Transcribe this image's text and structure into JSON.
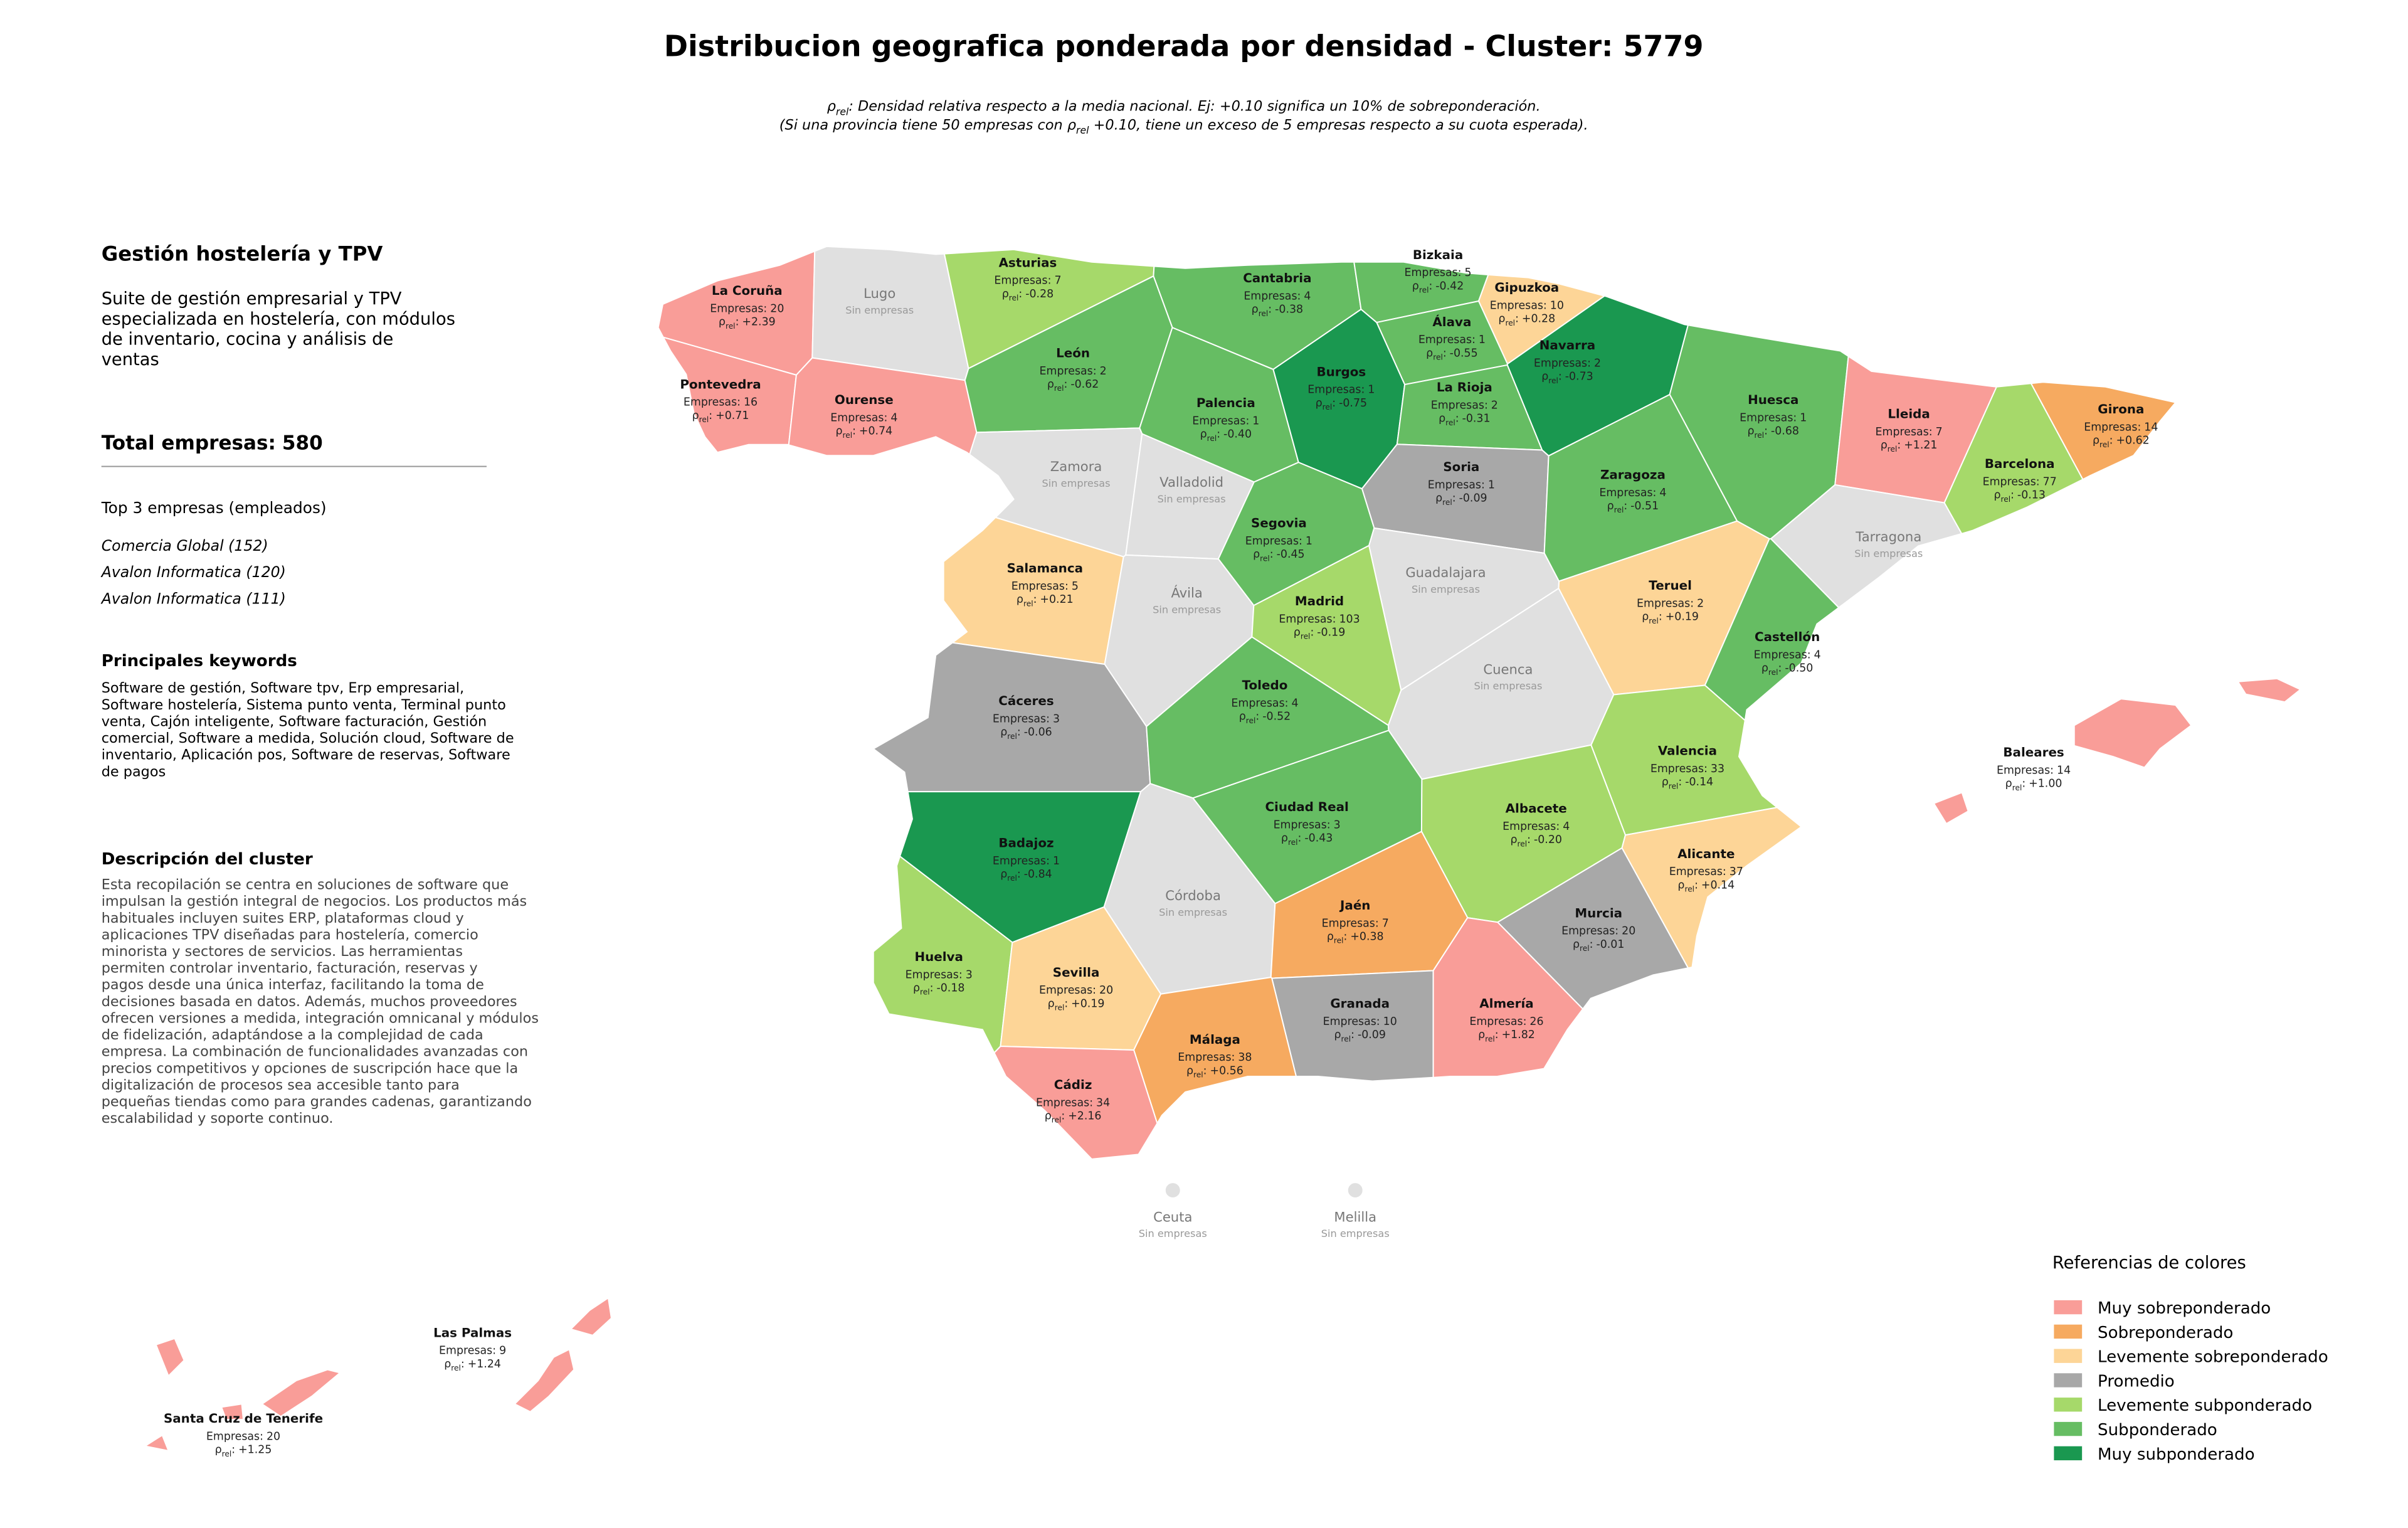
{
  "header": {
    "title": "Distribucion geografica ponderada por densidad - Cluster: 5779",
    "rho_symbol": "ρ",
    "rho_sub": "rel",
    "rho_suffix": ":",
    "subtitle_line1_rest": ": Densidad relativa respecto a la media nacional. Ej: +0.10 significa un 10% de sobreponderación.",
    "subtitle_line2_before": "(Si una provincia tiene 50 empresas con ",
    "subtitle_line2_after": " +0.10, tiene un exceso de 5 empresas respecto a su cuota esperada)."
  },
  "sidebar": {
    "cluster_name": "Gestión hostelería y TPV",
    "cluster_summary": [
      "Suite de gestión empresarial y TPV",
      "especializada en hostelería, con módulos",
      "de inventario, cocina y análisis de",
      "ventas"
    ],
    "total_label": "Total empresas:",
    "total": 580,
    "top_title": "Top 3 empresas (empleados)",
    "top_companies": [
      "Comercia Global (152)",
      "Avalon Informatica (120)",
      "Avalon Informatica (111)"
    ],
    "keywords_title": "Principales keywords",
    "keywords": [
      "Software de gestión, Software tpv, Erp empresarial,",
      "Software hostelería, Sistema punto venta, Terminal punto",
      "venta, Cajón inteligente, Software facturación, Gestión",
      "comercial, Software a medida, Solución cloud, Software de",
      "inventario, Aplicación pos, Software de reservas, Software",
      "de pagos"
    ],
    "description_title": "Descripción del cluster",
    "description": [
      "Esta recopilación se centra en soluciones de software que",
      "impulsan la gestión integral de negocios. Los productos más",
      "habituales incluyen suites ERP, plataformas cloud y",
      "aplicaciones TPV diseñadas para hostelería, comercio",
      "minorista y sectores de servicios. Las herramientas",
      "permiten controlar inventario, facturación, reservas y",
      "pagos desde una única interfaz, facilitando la toma de",
      "decisiones basada en datos. Además, muchos proveedores",
      "ofrecen versiones a medida, integración omnicanal y módulos",
      "de fidelización, adaptándose a la complejidad de cada",
      "empresa. La combinación de funcionalidades avanzadas con",
      "precios competitivos y opciones de suscripción hace que la",
      "digitalización de procesos sea accesible tanto para",
      "pequeñas tiendas como para grandes cadenas, garantizando",
      "escalabilidad y soporte continuo."
    ]
  },
  "map": {
    "empresas_label": "Empresas:",
    "no_data_label": "Sin empresas",
    "no_data_color": "#e0e0e0",
    "provinces": [
      {
        "name": "La Coruña",
        "empresas": 20,
        "rho": 2.39,
        "rho_label": "+2.39",
        "level": "Muy sobreponderado"
      },
      {
        "name": "Lugo"
      },
      {
        "name": "Asturias",
        "empresas": 7,
        "rho": -0.28,
        "level": "Levemente subponderado"
      },
      {
        "name": "Cantabria",
        "empresas": 4,
        "rho": -0.38,
        "level": "Subponderado"
      },
      {
        "name": "Bizkaia",
        "empresas": 5,
        "rho": -0.42,
        "level": "Subponderado"
      },
      {
        "name": "Gipuzkoa",
        "empresas": 10,
        "rho": 0.28,
        "rho_label": "+0.28",
        "level": "Levemente sobreponderado"
      },
      {
        "name": "Álava",
        "empresas": 1,
        "rho": -0.55,
        "level": "Subponderado"
      },
      {
        "name": "Navarra",
        "empresas": 2,
        "rho": -0.73,
        "level": "Muy subponderado"
      },
      {
        "name": "Pontevedra",
        "empresas": 16,
        "rho": 0.71,
        "rho_label": "+0.71",
        "level": "Muy sobreponderado"
      },
      {
        "name": "Ourense",
        "empresas": 4,
        "rho": 0.74,
        "rho_label": "+0.74",
        "level": "Muy sobreponderado"
      },
      {
        "name": "León",
        "empresas": 2,
        "rho": -0.62,
        "level": "Subponderado"
      },
      {
        "name": "Palencia",
        "empresas": 1,
        "rho": -0.4,
        "rho_label": "-0.40",
        "level": "Subponderado"
      },
      {
        "name": "Burgos",
        "empresas": 1,
        "rho": -0.75,
        "level": "Muy subponderado"
      },
      {
        "name": "La Rioja",
        "empresas": 2,
        "rho": -0.31,
        "level": "Subponderado"
      },
      {
        "name": "Huesca",
        "empresas": 1,
        "rho": -0.68,
        "level": "Subponderado"
      },
      {
        "name": "Lleida",
        "empresas": 7,
        "rho": 1.21,
        "rho_label": "+1.21",
        "level": "Muy sobreponderado"
      },
      {
        "name": "Girona",
        "empresas": 14,
        "rho": 0.62,
        "rho_label": "+0.62",
        "level": "Sobreponderado"
      },
      {
        "name": "Barcelona",
        "empresas": 77,
        "rho": -0.13,
        "level": "Levemente subponderado"
      },
      {
        "name": "Zamora"
      },
      {
        "name": "Valladolid"
      },
      {
        "name": "Soria",
        "empresas": 1,
        "rho": -0.09,
        "level": "Promedio"
      },
      {
        "name": "Zaragoza",
        "empresas": 4,
        "rho": -0.51,
        "level": "Subponderado"
      },
      {
        "name": "Segovia",
        "empresas": 1,
        "rho": -0.45,
        "level": "Subponderado"
      },
      {
        "name": "Tarragona"
      },
      {
        "name": "Salamanca",
        "empresas": 5,
        "rho": 0.21,
        "rho_label": "+0.21",
        "level": "Levemente sobreponderado"
      },
      {
        "name": "Ávila"
      },
      {
        "name": "Madrid",
        "empresas": 103,
        "rho": -0.19,
        "level": "Levemente subponderado"
      },
      {
        "name": "Guadalajara"
      },
      {
        "name": "Teruel",
        "empresas": 2,
        "rho": 0.19,
        "rho_label": "+0.19",
        "level": "Levemente sobreponderado"
      },
      {
        "name": "Castellón",
        "empresas": 4,
        "rho": -0.5,
        "rho_label": "-0.50",
        "level": "Subponderado"
      },
      {
        "name": "Cáceres",
        "empresas": 3,
        "rho": -0.06,
        "level": "Promedio"
      },
      {
        "name": "Toledo",
        "empresas": 4,
        "rho": -0.52,
        "level": "Subponderado"
      },
      {
        "name": "Cuenca"
      },
      {
        "name": "Valencia",
        "empresas": 33,
        "rho": -0.14,
        "level": "Levemente subponderado"
      },
      {
        "name": "Baleares",
        "empresas": 14,
        "rho": 1.0,
        "rho_label": "+1.00",
        "level": "Muy sobreponderado"
      },
      {
        "name": "Ciudad Real",
        "empresas": 3,
        "rho": -0.43,
        "level": "Subponderado"
      },
      {
        "name": "Albacete",
        "empresas": 4,
        "rho": -0.2,
        "rho_label": "-0.20",
        "level": "Levemente subponderado"
      },
      {
        "name": "Badajoz",
        "empresas": 1,
        "rho": -0.84,
        "level": "Muy subponderado"
      },
      {
        "name": "Alicante",
        "empresas": 37,
        "rho": 0.14,
        "rho_label": "+0.14",
        "level": "Levemente sobreponderado"
      },
      {
        "name": "Córdoba"
      },
      {
        "name": "Jaén",
        "empresas": 7,
        "rho": 0.38,
        "rho_label": "+0.38",
        "level": "Sobreponderado"
      },
      {
        "name": "Murcia",
        "empresas": 20,
        "rho": -0.01,
        "level": "Promedio"
      },
      {
        "name": "Huelva",
        "empresas": 3,
        "rho": -0.18,
        "level": "Levemente subponderado"
      },
      {
        "name": "Sevilla",
        "empresas": 20,
        "rho": 0.19,
        "rho_label": "+0.19",
        "level": "Levemente sobreponderado"
      },
      {
        "name": "Granada",
        "empresas": 10,
        "rho": -0.09,
        "level": "Promedio"
      },
      {
        "name": "Almería",
        "empresas": 26,
        "rho": 1.82,
        "rho_label": "+1.82",
        "level": "Muy sobreponderado"
      },
      {
        "name": "Málaga",
        "empresas": 38,
        "rho": 0.56,
        "rho_label": "+0.56",
        "level": "Sobreponderado"
      },
      {
        "name": "Cádiz",
        "empresas": 34,
        "rho": 2.16,
        "rho_label": "+2.16",
        "level": "Muy sobreponderado"
      },
      {
        "name": "Ceuta"
      },
      {
        "name": "Melilla"
      },
      {
        "name": "Las Palmas",
        "empresas": 9,
        "rho": 1.24,
        "rho_label": "+1.24",
        "level": "Muy sobreponderado"
      },
      {
        "name": "Santa Cruz de Tenerife",
        "empresas": 20,
        "rho": 1.25,
        "rho_label": "+1.25",
        "level": "Muy sobreponderado"
      }
    ]
  },
  "legend": {
    "title": "Referencias de colores",
    "items": [
      {
        "label": "Muy sobreponderado",
        "color": "#f99d98"
      },
      {
        "label": "Sobreponderado",
        "color": "#f6aa60"
      },
      {
        "label": "Levemente sobreponderado",
        "color": "#fdd597"
      },
      {
        "label": "Promedio",
        "color": "#a8a8a8"
      },
      {
        "label": "Levemente subponderado",
        "color": "#a6d96a"
      },
      {
        "label": "Subponderado",
        "color": "#66bd63"
      },
      {
        "label": "Muy subponderado",
        "color": "#1a9850"
      }
    ]
  }
}
